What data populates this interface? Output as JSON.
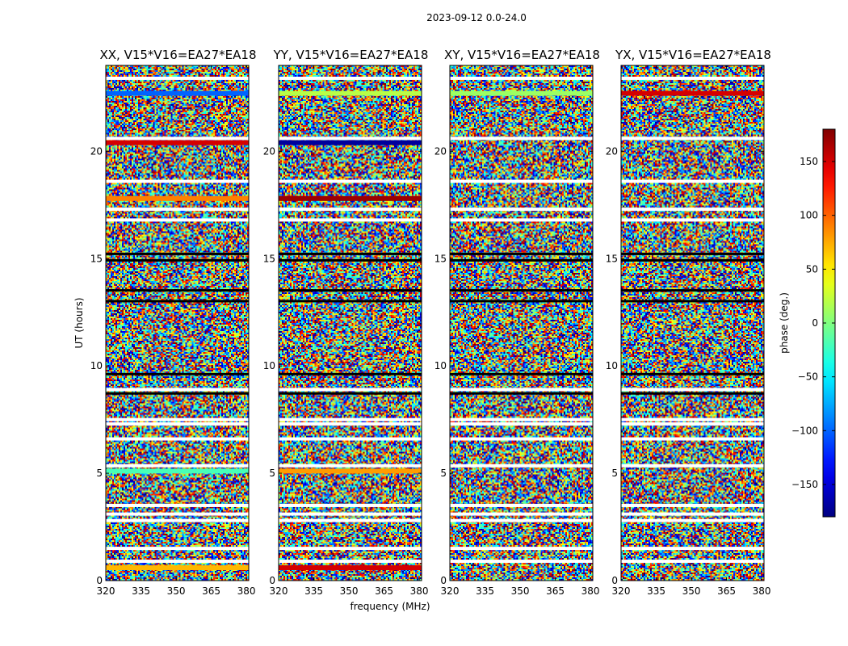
{
  "chart_data": {
    "type": "heatmap",
    "title": "2023-09-12 0.0-24.0",
    "xlabel": "frequency (MHz)",
    "ylabel": "UT (hours)",
    "xlim": [
      320,
      381
    ],
    "ylim": [
      0,
      24
    ],
    "xticks": [
      320,
      335,
      350,
      365,
      380
    ],
    "yticks": [
      0,
      5,
      10,
      15,
      20
    ],
    "colormap": "jet",
    "colorbar": {
      "label": "phase (deg.)",
      "range": [
        -180,
        180
      ],
      "ticks": [
        150,
        100,
        50,
        0,
        -50,
        -100,
        -150
      ],
      "tick_labels": [
        "150",
        "100",
        "50",
        "0",
        "−50",
        "−100",
        "−150"
      ]
    },
    "panels": [
      {
        "title": "XX, V15*V16=EA27*EA18"
      },
      {
        "title": "YY, V15*V16=EA27*EA18"
      },
      {
        "title": "XY, V15*V16=EA27*EA18"
      },
      {
        "title": "YX, V15*V16=EA27*EA18"
      }
    ],
    "data_gaps_ut": [
      0.9,
      1.5,
      2.8,
      3.1,
      3.5,
      5.35,
      6.6,
      7.3,
      7.5,
      8.9,
      16.8,
      17.3,
      18.6,
      20.6,
      23.4
    ],
    "coherent_bands": [
      {
        "panel": 0,
        "ut": 0.6,
        "phase": 70
      },
      {
        "panel": 0,
        "ut": 5.1,
        "phase": -20
      },
      {
        "panel": 0,
        "ut": 17.8,
        "phase": 90
      },
      {
        "panel": 0,
        "ut": 20.4,
        "phase": 150
      },
      {
        "panel": 0,
        "ut": 22.7,
        "phase": -100
      },
      {
        "panel": 1,
        "ut": 0.6,
        "phase": 150
      },
      {
        "panel": 1,
        "ut": 5.1,
        "phase": 80
      },
      {
        "panel": 1,
        "ut": 17.8,
        "phase": 170
      },
      {
        "panel": 1,
        "ut": 20.4,
        "phase": -170
      },
      {
        "panel": 1,
        "ut": 22.7,
        "phase": 20
      },
      {
        "panel": 2,
        "ut": 22.7,
        "phase": 10
      },
      {
        "panel": 3,
        "ut": 22.7,
        "phase": 150
      }
    ],
    "flagged_bands_ut": [
      13.0,
      13.5,
      14.9,
      15.2,
      9.6,
      8.7
    ]
  }
}
